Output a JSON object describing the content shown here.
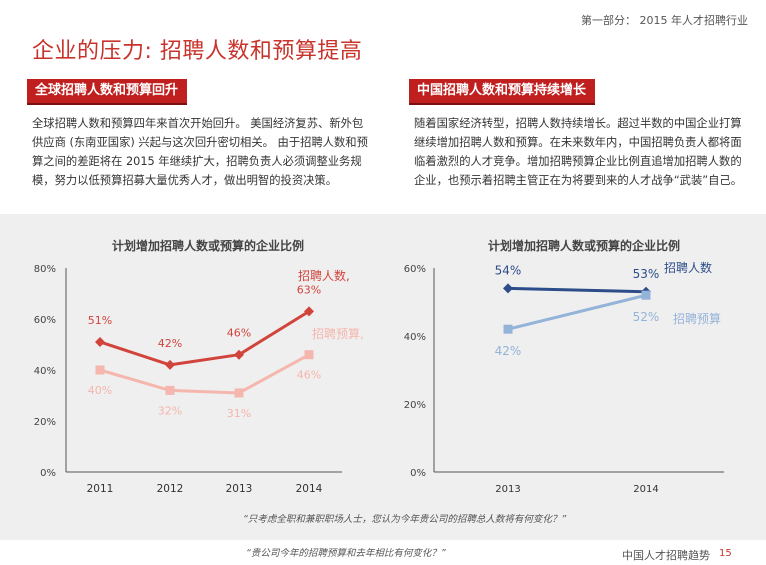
{
  "header": {
    "section": "第一部分：  2015 年人才招聘行业"
  },
  "title": "企业的压力: 招聘人数和预算提高",
  "left": {
    "tag": "全球招聘人数和预算回升",
    "paragraph": "全球招聘人数和预算四年来首次开始回升。 美国经济复苏、新外包供应商 (东南亚国家) 兴起与这次回升密切相关。 由于招聘人数和预算之间的差距将在 2015 年继续扩大，招聘负责人必须调整业务规模，努力以低预算招募大量优秀人才，做出明智的投资决策。"
  },
  "right": {
    "tag": "中国招聘人数和预算持续增长",
    "paragraph": "随着国家经济转型，招聘人数持续增长。超过半数的中国企业打算继续增加招聘人数和预算。在未来数年内，中国招聘负责人都将面临着激烈的人才竞争。增加招聘预算企业比例直追增加招聘人数的企业，也预示着招聘主管正在为将要到来的人才战争“武装”自己。"
  },
  "colors": {
    "accent": "#c8342c",
    "hires_global": "#d1443c",
    "budget_global": "#f5b6ad",
    "hires_china": "#2d4d8a",
    "budget_china": "#94b3d9",
    "panel": "#efefef"
  },
  "chart_data": [
    {
      "type": "line",
      "title": "计划增加招聘人数或预算的企业比例",
      "categories": [
        "2011",
        "2012",
        "2013",
        "2014"
      ],
      "y_ticks": [
        "0%",
        "20%",
        "40%",
        "60%",
        "80%"
      ],
      "ylim": [
        0,
        80
      ],
      "series": [
        {
          "name": "招聘人数",
          "legend": "招聘人数,",
          "values": [
            51,
            42,
            46,
            63
          ],
          "labels": [
            "51%",
            "42%",
            "46%",
            "63%"
          ]
        },
        {
          "name": "招聘预算",
          "legend": "招聘预算,",
          "values": [
            40,
            32,
            31,
            46
          ],
          "labels": [
            "40%",
            "32%",
            "31%",
            "46%"
          ]
        }
      ]
    },
    {
      "type": "line",
      "title": "计划增加招聘人数或预算的企业比例",
      "categories": [
        "2013",
        "2014"
      ],
      "y_ticks": [
        "0%",
        "20%",
        "40%",
        "60%"
      ],
      "ylim": [
        0,
        60
      ],
      "series": [
        {
          "name": "招聘人数",
          "legend": "招聘人数",
          "values": [
            54,
            53
          ],
          "labels": [
            "54%",
            "53%"
          ]
        },
        {
          "name": "招聘预算",
          "legend": "招聘预算",
          "values": [
            42,
            52
          ],
          "labels": [
            "42%",
            "52%"
          ]
        }
      ]
    }
  ],
  "footnotes": [
    "“只考虑全职和兼职职场人士，您认为今年贵公司的招聘总人数将有何变化？”",
    "“贵公司今年的招聘预算和去年相比有何变化？”"
  ],
  "footer": {
    "brand": "中国人才招聘趋势",
    "page": "15"
  }
}
